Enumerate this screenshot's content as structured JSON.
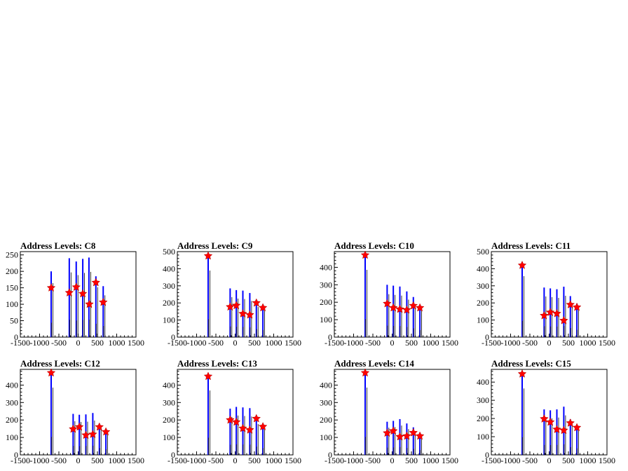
{
  "chart_data": [
    {
      "type": "bar",
      "title": "Address Levels: C8",
      "xlim": [
        -1500,
        1500
      ],
      "ylim": [
        0,
        260
      ],
      "xticks": [
        "-1500",
        "-1000",
        "-500",
        "0",
        "500",
        "1000",
        "1500"
      ],
      "yticks": [
        "0",
        "50",
        "100",
        "150",
        "200",
        "250"
      ],
      "peaks": [
        {
          "x": -700,
          "y": 200
        },
        {
          "x": -230,
          "y": 240
        },
        {
          "x": -50,
          "y": 230
        },
        {
          "x": 120,
          "y": 238
        },
        {
          "x": 280,
          "y": 242
        },
        {
          "x": 460,
          "y": 185
        },
        {
          "x": 650,
          "y": 155
        }
      ],
      "markers": [
        {
          "x": -700,
          "y": 150
        },
        {
          "x": -230,
          "y": 135
        },
        {
          "x": -50,
          "y": 152
        },
        {
          "x": 120,
          "y": 132
        },
        {
          "x": 290,
          "y": 100
        },
        {
          "x": 460,
          "y": 166
        },
        {
          "x": 650,
          "y": 106
        }
      ]
    },
    {
      "type": "bar",
      "title": "Address Levels: C9",
      "xlim": [
        -1500,
        1500
      ],
      "ylim": [
        0,
        500
      ],
      "xticks": [
        "-1500",
        "-1000",
        "-500",
        "0",
        "500",
        "1000",
        "1500"
      ],
      "yticks": [
        "0",
        "100",
        "200",
        "300",
        "400",
        "500"
      ],
      "peaks": [
        {
          "x": -700,
          "y": 475
        },
        {
          "x": -130,
          "y": 285
        },
        {
          "x": 30,
          "y": 275
        },
        {
          "x": 200,
          "y": 272
        },
        {
          "x": 380,
          "y": 258
        },
        {
          "x": 550,
          "y": 215
        },
        {
          "x": 720,
          "y": 190
        }
      ],
      "markers": [
        {
          "x": -700,
          "y": 475
        },
        {
          "x": -130,
          "y": 177
        },
        {
          "x": 30,
          "y": 185
        },
        {
          "x": 200,
          "y": 137
        },
        {
          "x": 380,
          "y": 130
        },
        {
          "x": 550,
          "y": 200
        },
        {
          "x": 720,
          "y": 172
        }
      ]
    },
    {
      "type": "bar",
      "title": "Address Levels: C10",
      "xlim": [
        -1500,
        1500
      ],
      "ylim": [
        0,
        490
      ],
      "xticks": [
        "-1500",
        "-1000",
        "-500",
        "0",
        "500",
        "1000",
        "1500"
      ],
      "yticks": [
        "0",
        "100",
        "200",
        "300",
        "400"
      ],
      "peaks": [
        {
          "x": -700,
          "y": 470
        },
        {
          "x": -130,
          "y": 300
        },
        {
          "x": 30,
          "y": 295
        },
        {
          "x": 200,
          "y": 290
        },
        {
          "x": 380,
          "y": 262
        },
        {
          "x": 550,
          "y": 230
        },
        {
          "x": 720,
          "y": 185
        }
      ],
      "markers": [
        {
          "x": -700,
          "y": 470
        },
        {
          "x": -130,
          "y": 192
        },
        {
          "x": 30,
          "y": 168
        },
        {
          "x": 200,
          "y": 160
        },
        {
          "x": 380,
          "y": 156
        },
        {
          "x": 550,
          "y": 180
        },
        {
          "x": 720,
          "y": 168
        }
      ]
    },
    {
      "type": "bar",
      "title": "Address Levels: C11",
      "xlim": [
        -1500,
        1500
      ],
      "ylim": [
        0,
        500
      ],
      "xticks": [
        "-1500",
        "-1000",
        "-500",
        "0",
        "500",
        "1000",
        "1500"
      ],
      "yticks": [
        "0",
        "100",
        "200",
        "300",
        "400",
        "500"
      ],
      "peaks": [
        {
          "x": -700,
          "y": 435
        },
        {
          "x": -130,
          "y": 290
        },
        {
          "x": 30,
          "y": 285
        },
        {
          "x": 200,
          "y": 280
        },
        {
          "x": 380,
          "y": 295
        },
        {
          "x": 550,
          "y": 240
        },
        {
          "x": 720,
          "y": 195
        }
      ],
      "markers": [
        {
          "x": -700,
          "y": 420
        },
        {
          "x": -130,
          "y": 126
        },
        {
          "x": 30,
          "y": 145
        },
        {
          "x": 200,
          "y": 138
        },
        {
          "x": 380,
          "y": 97
        },
        {
          "x": 550,
          "y": 190
        },
        {
          "x": 720,
          "y": 175
        }
      ]
    },
    {
      "type": "bar",
      "title": "Address Levels: C12",
      "xlim": [
        -1500,
        1500
      ],
      "ylim": [
        0,
        490
      ],
      "xticks": [
        "-1500",
        "-1000",
        "-500",
        "0",
        "500",
        "1000",
        "1500"
      ],
      "yticks": [
        "0",
        "100",
        "200",
        "300",
        "400"
      ],
      "peaks": [
        {
          "x": -700,
          "y": 470
        },
        {
          "x": -130,
          "y": 235
        },
        {
          "x": 30,
          "y": 230
        },
        {
          "x": 200,
          "y": 232
        },
        {
          "x": 380,
          "y": 240
        },
        {
          "x": 550,
          "y": 178
        },
        {
          "x": 720,
          "y": 145
        }
      ],
      "markers": [
        {
          "x": -700,
          "y": 470
        },
        {
          "x": -130,
          "y": 148
        },
        {
          "x": 30,
          "y": 160
        },
        {
          "x": 200,
          "y": 113
        },
        {
          "x": 380,
          "y": 118
        },
        {
          "x": 550,
          "y": 160
        },
        {
          "x": 720,
          "y": 132
        }
      ]
    },
    {
      "type": "bar",
      "title": "Address Levels: C13",
      "xlim": [
        -1500,
        1500
      ],
      "ylim": [
        0,
        490
      ],
      "xticks": [
        "-1500",
        "-1000",
        "-500",
        "0",
        "500",
        "1000",
        "1500"
      ],
      "yticks": [
        "0",
        "100",
        "200",
        "300",
        "400"
      ],
      "peaks": [
        {
          "x": -700,
          "y": 450
        },
        {
          "x": -130,
          "y": 265
        },
        {
          "x": 30,
          "y": 275
        },
        {
          "x": 200,
          "y": 272
        },
        {
          "x": 380,
          "y": 268
        },
        {
          "x": 550,
          "y": 215
        },
        {
          "x": 720,
          "y": 178
        }
      ],
      "markers": [
        {
          "x": -700,
          "y": 450
        },
        {
          "x": -130,
          "y": 200
        },
        {
          "x": 30,
          "y": 188
        },
        {
          "x": 200,
          "y": 152
        },
        {
          "x": 380,
          "y": 143
        },
        {
          "x": 550,
          "y": 208
        },
        {
          "x": 720,
          "y": 162
        }
      ]
    },
    {
      "type": "bar",
      "title": "Address Levels: C14",
      "xlim": [
        -1500,
        1500
      ],
      "ylim": [
        0,
        490
      ],
      "xticks": [
        "-1500",
        "-1000",
        "-500",
        "0",
        "500",
        "1000",
        "1500"
      ],
      "yticks": [
        "0",
        "100",
        "200",
        "300",
        "400"
      ],
      "peaks": [
        {
          "x": -700,
          "y": 470
        },
        {
          "x": -130,
          "y": 190
        },
        {
          "x": 30,
          "y": 195
        },
        {
          "x": 200,
          "y": 205
        },
        {
          "x": 380,
          "y": 180
        },
        {
          "x": 550,
          "y": 158
        },
        {
          "x": 720,
          "y": 125
        }
      ],
      "markers": [
        {
          "x": -700,
          "y": 470
        },
        {
          "x": -130,
          "y": 125
        },
        {
          "x": 30,
          "y": 137
        },
        {
          "x": 200,
          "y": 104
        },
        {
          "x": 380,
          "y": 108
        },
        {
          "x": 550,
          "y": 127
        },
        {
          "x": 720,
          "y": 108
        }
      ]
    },
    {
      "type": "bar",
      "title": "Address Levels: C15",
      "xlim": [
        -1500,
        1500
      ],
      "ylim": [
        0,
        470
      ],
      "xticks": [
        "-1500",
        "-1000",
        "-500",
        "0",
        "500",
        "1000",
        "1500"
      ],
      "yticks": [
        "0",
        "100",
        "200",
        "300",
        "400"
      ],
      "peaks": [
        {
          "x": -700,
          "y": 445
        },
        {
          "x": -130,
          "y": 250
        },
        {
          "x": 30,
          "y": 245
        },
        {
          "x": 200,
          "y": 250
        },
        {
          "x": 380,
          "y": 265
        },
        {
          "x": 550,
          "y": 195
        },
        {
          "x": 720,
          "y": 165
        }
      ],
      "markers": [
        {
          "x": -700,
          "y": 445
        },
        {
          "x": -130,
          "y": 198
        },
        {
          "x": 30,
          "y": 180
        },
        {
          "x": 200,
          "y": 140
        },
        {
          "x": 380,
          "y": 135
        },
        {
          "x": 550,
          "y": 175
        },
        {
          "x": 720,
          "y": 150
        }
      ]
    }
  ],
  "colors": {
    "line": "#0000ff",
    "marker": "#ff0000",
    "secondary": "#000000",
    "axis": "#000000"
  }
}
